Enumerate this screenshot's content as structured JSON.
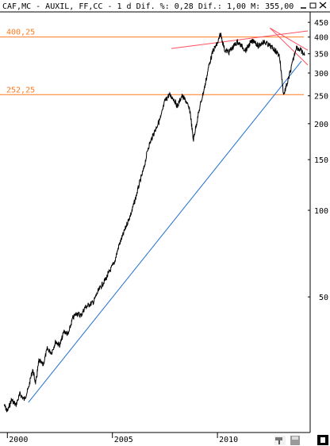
{
  "header": {
    "title": "CAF,MC - AUXIL, FF,CC -  1 d Dif. %: 0,28 Dif.: 1,00 M: 355,00"
  },
  "window_controls": {
    "minimize_icon": "minimize-icon",
    "restore_icon": "restore-icon",
    "close_icon": "close-icon"
  },
  "toolbar": {
    "icons": [
      "hammer-icon",
      "save-icon",
      "info-icon"
    ]
  },
  "colors": {
    "price": "#000000",
    "level": "#ff7a1f",
    "support": "#1f6fd6",
    "resistance": "#ff4d5e"
  },
  "levels": [
    {
      "label": "400,25",
      "value": 400.25
    },
    {
      "label": "252,25",
      "value": 252.25
    }
  ],
  "chart_data": {
    "type": "line",
    "title": "CAF,MC - AUXIL, FF,CC -  1 d Dif. %: 0,28 Dif.: 1,00 M: 355,00",
    "scale": "log",
    "ylim": [
      18,
      480
    ],
    "xlim": [
      1999.8,
      2014.3
    ],
    "y_ticks": [
      {
        "label": "450",
        "value": 450
      },
      {
        "label": "400",
        "value": 400
      },
      {
        "label": "350",
        "value": 350
      },
      {
        "label": "300",
        "value": 300
      },
      {
        "label": "250",
        "value": 250
      },
      {
        "label": "200",
        "value": 200
      },
      {
        "label": "150",
        "value": 150
      },
      {
        "label": "100",
        "value": 100
      },
      {
        "label": "50",
        "value": 50
      }
    ],
    "x_ticks": [
      {
        "label": "2000",
        "value": 2000
      },
      {
        "label": "2005",
        "value": 2005
      },
      {
        "label": "2010",
        "value": 2010
      }
    ],
    "series": [
      {
        "x": [
          1999.85,
          2000.0,
          2000.2,
          2000.4,
          2000.6,
          2000.8,
          2001.0,
          2001.2,
          2001.35,
          2001.5,
          2001.7,
          2001.9,
          2002.1,
          2002.3,
          2002.5,
          2002.7,
          2002.9,
          2003.1,
          2003.3,
          2003.5,
          2003.7,
          2003.9,
          2004.1,
          2004.3,
          2004.5,
          2004.7,
          2004.9,
          2005.1,
          2005.3,
          2005.5,
          2005.7,
          2005.9,
          2006.1,
          2006.3,
          2006.5,
          2006.7,
          2006.9,
          2007.1,
          2007.3,
          2007.5,
          2007.7,
          2007.9,
          2008.1,
          2008.3,
          2008.5,
          2008.7,
          2008.85,
          2009.0,
          2009.2,
          2009.4,
          2009.6,
          2009.8,
          2010.0,
          2010.15,
          2010.35,
          2010.55,
          2010.75,
          2010.95,
          2011.15,
          2011.35,
          2011.55,
          2011.75,
          2011.95,
          2012.15,
          2012.35,
          2012.55,
          2012.75,
          2012.95,
          2013.15,
          2013.35,
          2013.55,
          2013.75,
          2013.95,
          2014.15
        ],
        "values": [
          21,
          20,
          22,
          21,
          23,
          22,
          24,
          28,
          25,
          30,
          29,
          33,
          32,
          35,
          34,
          38,
          37,
          42,
          44,
          43,
          46,
          47,
          48,
          52,
          55,
          58,
          62,
          66,
          75,
          82,
          90,
          98,
          110,
          125,
          140,
          165,
          180,
          195,
          210,
          240,
          252,
          245,
          230,
          250,
          240,
          220,
          175,
          200,
          235,
          270,
          320,
          360,
          380,
          410,
          360,
          355,
          370,
          385,
          372,
          360,
          380,
          390,
          370,
          385,
          380,
          370,
          360,
          345,
          252,
          280,
          320,
          370,
          360,
          345
        ]
      }
    ],
    "annotations": [
      {
        "type": "horizontal_level",
        "label": "400,25",
        "y": 400.25
      },
      {
        "type": "horizontal_level",
        "label": "252,25",
        "y": 252.25
      },
      {
        "type": "trendline",
        "name": "",
        "points": [
          [
            2001.0,
            21.5
          ],
          [
            2014.0,
            330
          ]
        ]
      },
      {
        "type": "trendline",
        "name": "",
        "points": [
          [
            2007.8,
            365
          ],
          [
            2014.3,
            420
          ]
        ]
      },
      {
        "type": "trendline",
        "name": "",
        "points": [
          [
            2012.5,
            430
          ],
          [
            2014.3,
            320
          ]
        ]
      },
      {
        "type": "trendline",
        "name": "",
        "points": [
          [
            2012.5,
            430
          ],
          [
            2014.3,
            360
          ]
        ]
      }
    ],
    "grid": false,
    "legend": "none"
  }
}
